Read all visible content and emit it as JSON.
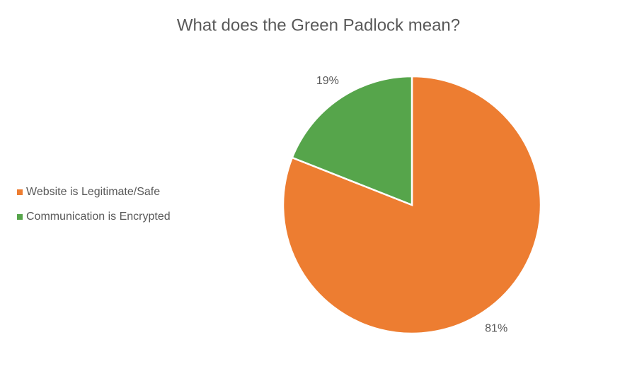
{
  "chart_data": {
    "type": "pie",
    "title": "What does the Green Padlock mean?",
    "categories": [
      "Website is Legitimate/Safe",
      "Communication is Encrypted"
    ],
    "values": [
      81,
      19
    ],
    "value_labels": [
      "81%",
      "19%"
    ],
    "colors": [
      "#ed7d31",
      "#56a54b"
    ],
    "legend": "left"
  }
}
